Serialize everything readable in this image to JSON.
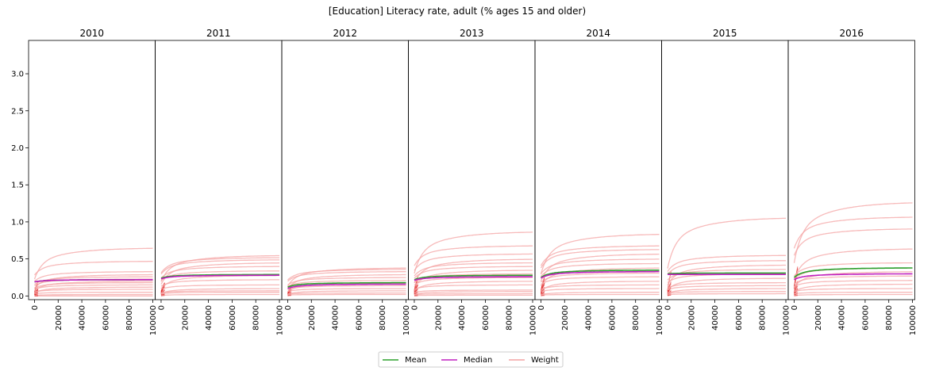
{
  "chart_data": {
    "type": "line",
    "title": "[Education] Literacy rate, adult (% ages 15 and older)",
    "panels": [
      {
        "year": "2010",
        "mean_level": 0.22,
        "median_level": 0.22,
        "mean_start": 0.19,
        "median_start": 0.19,
        "weight_levels": [
          0.65,
          0.47,
          0.33,
          0.29,
          0.26,
          0.23,
          0.2,
          0.18,
          0.15,
          0.12,
          0.09,
          0.05,
          0.02,
          0.0
        ]
      },
      {
        "year": "2011",
        "mean_level": 0.29,
        "median_level": 0.28,
        "mean_start": 0.24,
        "median_start": 0.23,
        "weight_levels": [
          0.55,
          0.52,
          0.49,
          0.45,
          0.4,
          0.34,
          0.28,
          0.22,
          0.15,
          0.1,
          0.07,
          0.05,
          0.02
        ]
      },
      {
        "year": "2012",
        "mean_level": 0.18,
        "median_level": 0.16,
        "mean_start": 0.12,
        "median_start": 0.1,
        "weight_levels": [
          0.38,
          0.36,
          0.33,
          0.29,
          0.25,
          0.21,
          0.17,
          0.14,
          0.1,
          0.07,
          0.04,
          0.02
        ]
      },
      {
        "year": "2013",
        "mean_level": 0.28,
        "median_level": 0.26,
        "mean_start": 0.22,
        "median_start": 0.21,
        "weight_levels": [
          0.87,
          0.68,
          0.57,
          0.5,
          0.45,
          0.4,
          0.35,
          0.3,
          0.25,
          0.2,
          0.15,
          0.08,
          0.06,
          0.03,
          0.01
        ]
      },
      {
        "year": "2014",
        "mean_level": 0.35,
        "median_level": 0.33,
        "mean_start": 0.25,
        "median_start": 0.24,
        "weight_levels": [
          0.84,
          0.68,
          0.63,
          0.57,
          0.5,
          0.44,
          0.38,
          0.31,
          0.26,
          0.2,
          0.15,
          0.1,
          0.05,
          0.02
        ]
      },
      {
        "year": "2015",
        "mean_level": 0.31,
        "median_level": 0.29,
        "mean_start": 0.3,
        "median_start": 0.29,
        "weight_levels": [
          1.06,
          0.55,
          0.48,
          0.42,
          0.36,
          0.3,
          0.24,
          0.18,
          0.14,
          0.1,
          0.06,
          0.03
        ]
      },
      {
        "year": "2016",
        "mean_level": 0.38,
        "median_level": 0.3,
        "mean_start": 0.25,
        "median_start": 0.22,
        "weight_levels": [
          1.27,
          1.07,
          0.91,
          0.64,
          0.45,
          0.38,
          0.33,
          0.27,
          0.21,
          0.16,
          0.1,
          0.05,
          0.02
        ]
      }
    ],
    "x_ticks": [
      "0",
      "20000",
      "40000",
      "60000",
      "80000",
      "100000"
    ],
    "xlim": [
      -5000,
      102000
    ],
    "y_ticks": [
      "0.0",
      "0.5",
      "1.0",
      "1.5",
      "2.0",
      "2.5",
      "3.0"
    ],
    "ylim": [
      -0.05,
      3.45
    ],
    "legend": {
      "mean_label": "Mean",
      "median_label": "Median",
      "weight_label": "Weight"
    },
    "legend_position": "bottom-center",
    "colors": {
      "mean": "#2ca02c",
      "median": "#c020c0",
      "weight": "#f4a3a3",
      "weight_dark": "#e02020"
    }
  }
}
